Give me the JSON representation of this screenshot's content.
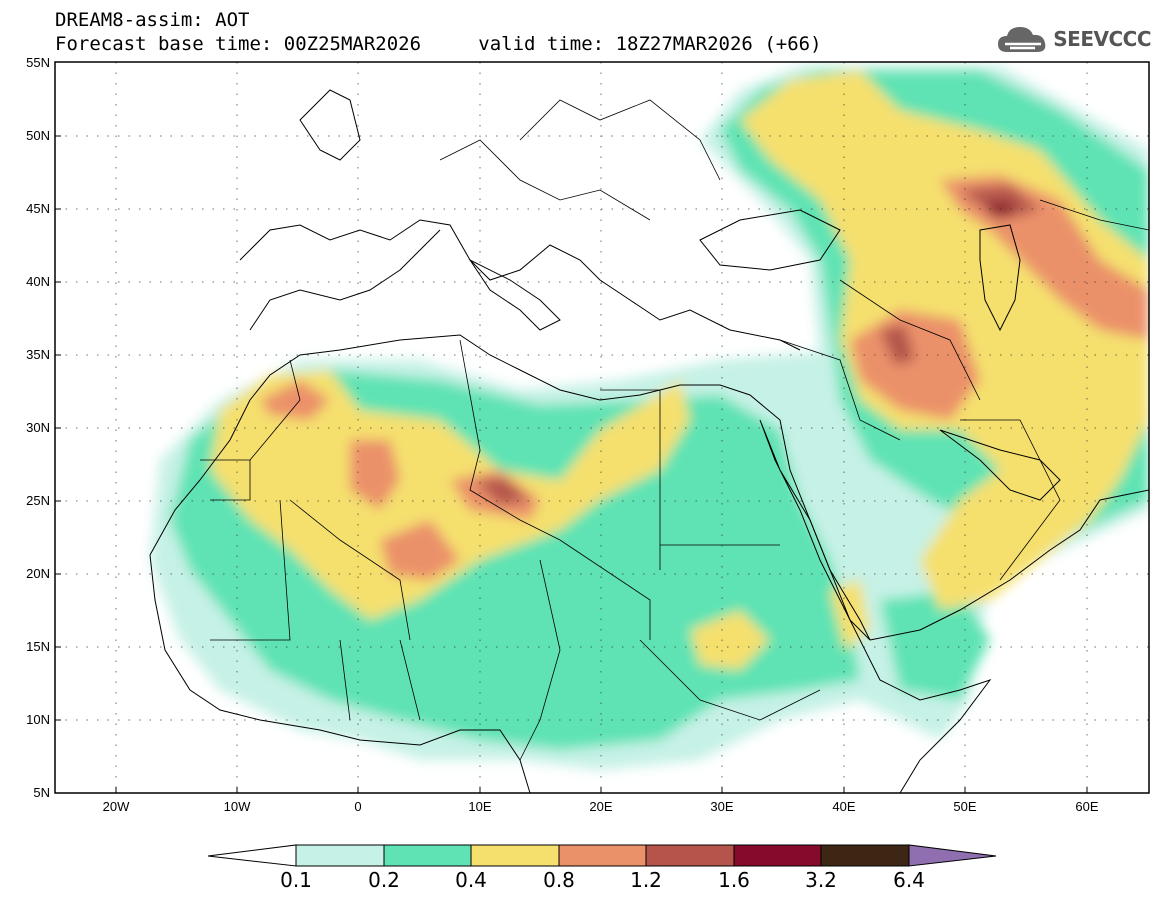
{
  "header": {
    "title": "DREAM8-assim: AOT",
    "base_time_label": "Forecast base time:",
    "base_time": "00Z25MAR2026",
    "valid_time_label": "valid time:",
    "valid_time": "18Z27MAR2026",
    "lead": "(+66)"
  },
  "brand": {
    "name": "SEEVCCC",
    "icon": "cloud-logo-icon"
  },
  "map": {
    "lat_ticks": [
      "55N",
      "50N",
      "45N",
      "40N",
      "35N",
      "30N",
      "25N",
      "20N",
      "15N",
      "10N",
      "5N"
    ],
    "lon_ticks": [
      "20W",
      "10W",
      "0",
      "10E",
      "20E",
      "30E",
      "40E",
      "50E",
      "60E"
    ],
    "lat_range": [
      5,
      55
    ],
    "lon_range": [
      -25,
      65
    ]
  },
  "colorbar": {
    "labels": [
      "0.1",
      "0.2",
      "0.4",
      "0.8",
      "1.2",
      "1.6",
      "3.2",
      "6.4"
    ],
    "colors": [
      "#ffffff",
      "#c6f1e6",
      "#5fe3b4",
      "#f5e06e",
      "#eb916a",
      "#b4544b",
      "#850a2c",
      "#3d2714",
      "#8f6fb0"
    ]
  }
}
